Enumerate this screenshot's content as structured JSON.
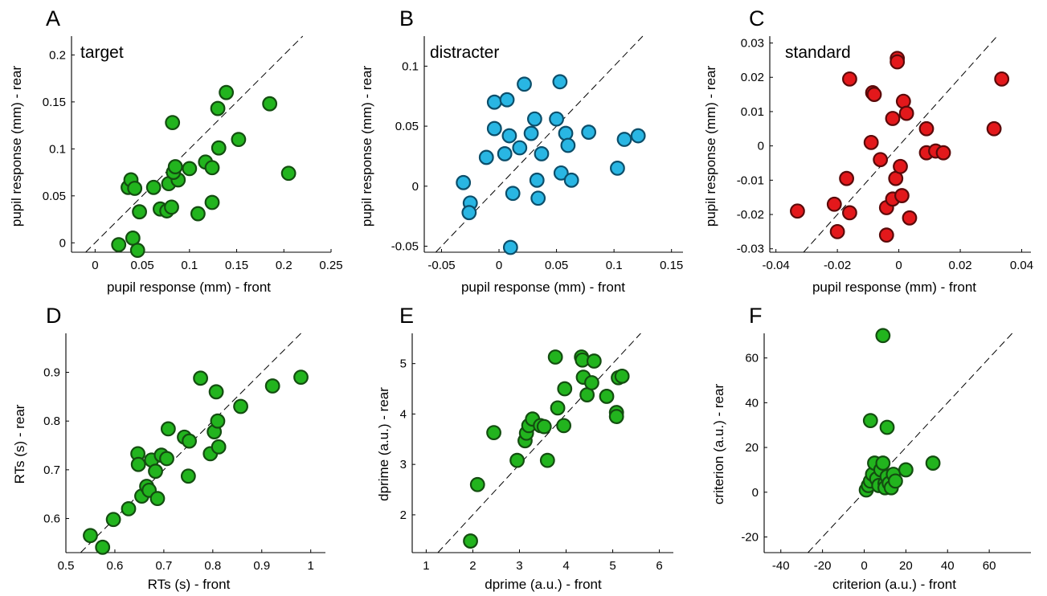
{
  "chart_data": [
    {
      "type": "scatter",
      "panel_letter": "A",
      "title": "target",
      "xlabel": "pupil response (mm) - front",
      "ylabel": "pupil response (mm) - rear",
      "xlim": [
        -0.025,
        0.25
      ],
      "ylim": [
        -0.01,
        0.22
      ],
      "xticks": [
        0,
        0.05,
        0.1,
        0.15,
        0.2,
        0.25
      ],
      "xtick_labels": [
        "0",
        "0.05",
        "0.1",
        "0.15",
        "0.2",
        "0.25"
      ],
      "yticks": [
        0,
        0.05,
        0.1,
        0.15,
        0.2
      ],
      "ytick_labels": [
        "0",
        "0.05",
        "0.1",
        "0.15",
        "0.2"
      ],
      "diagonal": true,
      "marker_color": "#22b41e",
      "marker_edge": "#134d10",
      "points": [
        [
          0.025,
          -0.002
        ],
        [
          0.04,
          0.005
        ],
        [
          0.045,
          -0.008
        ],
        [
          0.035,
          0.059
        ],
        [
          0.038,
          0.067
        ],
        [
          0.042,
          0.058
        ],
        [
          0.047,
          0.033
        ],
        [
          0.062,
          0.059
        ],
        [
          0.069,
          0.036
        ],
        [
          0.076,
          0.034
        ],
        [
          0.081,
          0.038
        ],
        [
          0.078,
          0.063
        ],
        [
          0.088,
          0.067
        ],
        [
          0.083,
          0.075
        ],
        [
          0.085,
          0.081
        ],
        [
          0.1,
          0.079
        ],
        [
          0.082,
          0.128
        ],
        [
          0.109,
          0.031
        ],
        [
          0.117,
          0.086
        ],
        [
          0.124,
          0.08
        ],
        [
          0.124,
          0.043
        ],
        [
          0.131,
          0.101
        ],
        [
          0.13,
          0.143
        ],
        [
          0.139,
          0.16
        ],
        [
          0.152,
          0.11
        ],
        [
          0.185,
          0.148
        ],
        [
          0.205,
          0.074
        ]
      ]
    },
    {
      "type": "scatter",
      "panel_letter": "B",
      "title": "distracter",
      "xlabel": "pupil response (mm) - front",
      "ylabel": "pupil response (mm) - rear",
      "xlim": [
        -0.065,
        0.16
      ],
      "ylim": [
        -0.055,
        0.125
      ],
      "xticks": [
        -0.05,
        0,
        0.05,
        0.1,
        0.15
      ],
      "xtick_labels": [
        "-0.05",
        "0",
        "0.05",
        "0.1",
        "0.15"
      ],
      "yticks": [
        -0.05,
        0,
        0.05,
        0.1
      ],
      "ytick_labels": [
        "-0.05",
        "0",
        "0.05",
        "0.1"
      ],
      "diagonal": true,
      "marker_color": "#29b6e3",
      "marker_edge": "#0c4e6a",
      "points": [
        [
          -0.031,
          0.003
        ],
        [
          -0.025,
          -0.014
        ],
        [
          -0.026,
          -0.022
        ],
        [
          -0.011,
          0.024
        ],
        [
          -0.004,
          0.07
        ],
        [
          -0.004,
          0.048
        ],
        [
          0.007,
          0.072
        ],
        [
          0.005,
          0.027
        ],
        [
          0.009,
          0.042
        ],
        [
          0.01,
          -0.051
        ],
        [
          0.012,
          -0.006
        ],
        [
          0.018,
          0.032
        ],
        [
          0.022,
          0.085
        ],
        [
          0.028,
          0.044
        ],
        [
          0.031,
          0.056
        ],
        [
          0.033,
          0.005
        ],
        [
          0.034,
          -0.01
        ],
        [
          0.037,
          0.027
        ],
        [
          0.05,
          0.056
        ],
        [
          0.053,
          0.087
        ],
        [
          0.054,
          0.011
        ],
        [
          0.058,
          0.044
        ],
        [
          0.06,
          0.034
        ],
        [
          0.063,
          0.005
        ],
        [
          0.078,
          0.045
        ],
        [
          0.103,
          0.015
        ],
        [
          0.109,
          0.039
        ],
        [
          0.121,
          0.042
        ]
      ]
    },
    {
      "type": "scatter",
      "panel_letter": "C",
      "title": "standard",
      "xlabel": "pupil response (mm) - front",
      "ylabel": "pupil response (mm) - rear",
      "xlim": [
        -0.042,
        0.043
      ],
      "ylim": [
        -0.031,
        0.032
      ],
      "xticks": [
        -0.04,
        -0.02,
        0,
        0.02,
        0.04
      ],
      "xtick_labels": [
        "-0.04",
        "-0.02",
        "0",
        "0.02",
        "0.04"
      ],
      "yticks": [
        -0.03,
        -0.02,
        -0.01,
        0,
        0.01,
        0.02,
        0.03
      ],
      "ytick_labels": [
        "-0.03",
        "-0.02",
        "-0.01",
        "0",
        "0.01",
        "0.02",
        "0.03"
      ],
      "diagonal": true,
      "marker_color": "#e3181b",
      "marker_edge": "#5a0a0a",
      "points": [
        [
          -0.033,
          -0.019
        ],
        [
          -0.021,
          -0.017
        ],
        [
          -0.02,
          -0.025
        ],
        [
          -0.017,
          -0.0095
        ],
        [
          -0.016,
          -0.0195
        ],
        [
          -0.016,
          0.0195
        ],
        [
          -0.009,
          0.001
        ],
        [
          -0.0085,
          0.0155
        ],
        [
          -0.008,
          0.015
        ],
        [
          -0.006,
          -0.004
        ],
        [
          -0.004,
          -0.026
        ],
        [
          -0.004,
          -0.018
        ],
        [
          -0.002,
          -0.0155
        ],
        [
          -0.002,
          0.008
        ],
        [
          -0.001,
          -0.0095
        ],
        [
          -0.0005,
          0.0255
        ],
        [
          -0.0005,
          0.0245
        ],
        [
          0.0005,
          -0.006
        ],
        [
          0.001,
          -0.0145
        ],
        [
          0.0015,
          0.013
        ],
        [
          0.0025,
          0.0095
        ],
        [
          0.0035,
          -0.021
        ],
        [
          0.009,
          0.005
        ],
        [
          0.009,
          -0.002
        ],
        [
          0.012,
          -0.0015
        ],
        [
          0.0145,
          -0.002
        ],
        [
          0.031,
          0.005
        ],
        [
          0.0335,
          0.0195
        ]
      ]
    },
    {
      "type": "scatter",
      "panel_letter": "D",
      "title": "",
      "xlabel": "RTs (s) - front",
      "ylabel": "RTs (s) - rear",
      "xlim": [
        0.5,
        1.03
      ],
      "ylim": [
        0.53,
        0.98
      ],
      "xticks": [
        0.5,
        0.6,
        0.7,
        0.8,
        0.9,
        1
      ],
      "xtick_labels": [
        "0.5",
        "0.6",
        "0.7",
        "0.8",
        "0.9",
        "1"
      ],
      "yticks": [
        0.6,
        0.7,
        0.8,
        0.9
      ],
      "ytick_labels": [
        "0.6",
        "0.7",
        "0.8",
        "0.9"
      ],
      "diagonal": true,
      "marker_color": "#22b41e",
      "marker_edge": "#134d10",
      "points": [
        [
          0.55,
          0.565
        ],
        [
          0.575,
          0.541
        ],
        [
          0.597,
          0.598
        ],
        [
          0.628,
          0.62
        ],
        [
          0.647,
          0.733
        ],
        [
          0.648,
          0.711
        ],
        [
          0.655,
          0.646
        ],
        [
          0.665,
          0.666
        ],
        [
          0.67,
          0.658
        ],
        [
          0.675,
          0.72
        ],
        [
          0.683,
          0.697
        ],
        [
          0.687,
          0.641
        ],
        [
          0.695,
          0.73
        ],
        [
          0.706,
          0.723
        ],
        [
          0.709,
          0.784
        ],
        [
          0.742,
          0.767
        ],
        [
          0.75,
          0.687
        ],
        [
          0.752,
          0.759
        ],
        [
          0.775,
          0.888
        ],
        [
          0.795,
          0.733
        ],
        [
          0.803,
          0.778
        ],
        [
          0.807,
          0.86
        ],
        [
          0.81,
          0.8
        ],
        [
          0.812,
          0.747
        ],
        [
          0.857,
          0.83
        ],
        [
          0.922,
          0.872
        ],
        [
          0.98,
          0.89
        ]
      ]
    },
    {
      "type": "scatter",
      "panel_letter": "E",
      "title": "",
      "xlabel": "dprime (a.u.) - front",
      "ylabel": "dprime (a.u.) - rear",
      "xlim": [
        0.7,
        6.3
      ],
      "ylim": [
        1.25,
        5.6
      ],
      "xticks": [
        1,
        2,
        3,
        4,
        5,
        6
      ],
      "xtick_labels": [
        "1",
        "2",
        "3",
        "4",
        "5",
        "6"
      ],
      "yticks": [
        2,
        3,
        4,
        5
      ],
      "ytick_labels": [
        "2",
        "3",
        "4",
        "5"
      ],
      "diagonal": true,
      "marker_color": "#22b41e",
      "marker_edge": "#134d10",
      "points": [
        [
          1.95,
          1.48
        ],
        [
          2.1,
          2.6
        ],
        [
          2.45,
          3.63
        ],
        [
          2.95,
          3.08
        ],
        [
          3.12,
          3.47
        ],
        [
          3.15,
          3.62
        ],
        [
          3.2,
          3.77
        ],
        [
          3.28,
          3.9
        ],
        [
          3.45,
          3.77
        ],
        [
          3.53,
          3.75
        ],
        [
          3.6,
          3.08
        ],
        [
          3.77,
          5.13
        ],
        [
          3.82,
          4.12
        ],
        [
          3.95,
          3.77
        ],
        [
          3.97,
          4.5
        ],
        [
          4.33,
          5.13
        ],
        [
          4.35,
          5.07
        ],
        [
          4.37,
          4.73
        ],
        [
          4.45,
          4.38
        ],
        [
          4.55,
          4.62
        ],
        [
          4.6,
          5.05
        ],
        [
          4.87,
          4.35
        ],
        [
          5.08,
          4.03
        ],
        [
          5.08,
          3.95
        ],
        [
          5.12,
          4.72
        ],
        [
          5.2,
          4.75
        ]
      ]
    },
    {
      "type": "scatter",
      "panel_letter": "F",
      "title": "",
      "xlabel": "criterion (a.u.) - front",
      "ylabel": "criterion (a.u.) - rear",
      "xlim": [
        -48,
        80
      ],
      "ylim": [
        -27,
        71
      ],
      "xticks": [
        -40,
        -20,
        0,
        20,
        40,
        60
      ],
      "xtick_labels": [
        "-40",
        "-20",
        "0",
        "20",
        "40",
        "60"
      ],
      "yticks": [
        -20,
        0,
        20,
        40,
        60
      ],
      "ytick_labels": [
        "-20",
        "0",
        "20",
        "40",
        "60"
      ],
      "diagonal": true,
      "marker_color": "#22b41e",
      "marker_edge": "#134d10",
      "points": [
        [
          9,
          70
        ],
        [
          3,
          32
        ],
        [
          11,
          29
        ],
        [
          1,
          1
        ],
        [
          2,
          3
        ],
        [
          3,
          5
        ],
        [
          4,
          8
        ],
        [
          5,
          13
        ],
        [
          6,
          6
        ],
        [
          7,
          3
        ],
        [
          8,
          10
        ],
        [
          9,
          13
        ],
        [
          10,
          4
        ],
        [
          10,
          2
        ],
        [
          11,
          7
        ],
        [
          12,
          4
        ],
        [
          13,
          2
        ],
        [
          14,
          8
        ],
        [
          15,
          5
        ],
        [
          20,
          10
        ],
        [
          33,
          13
        ]
      ]
    }
  ]
}
